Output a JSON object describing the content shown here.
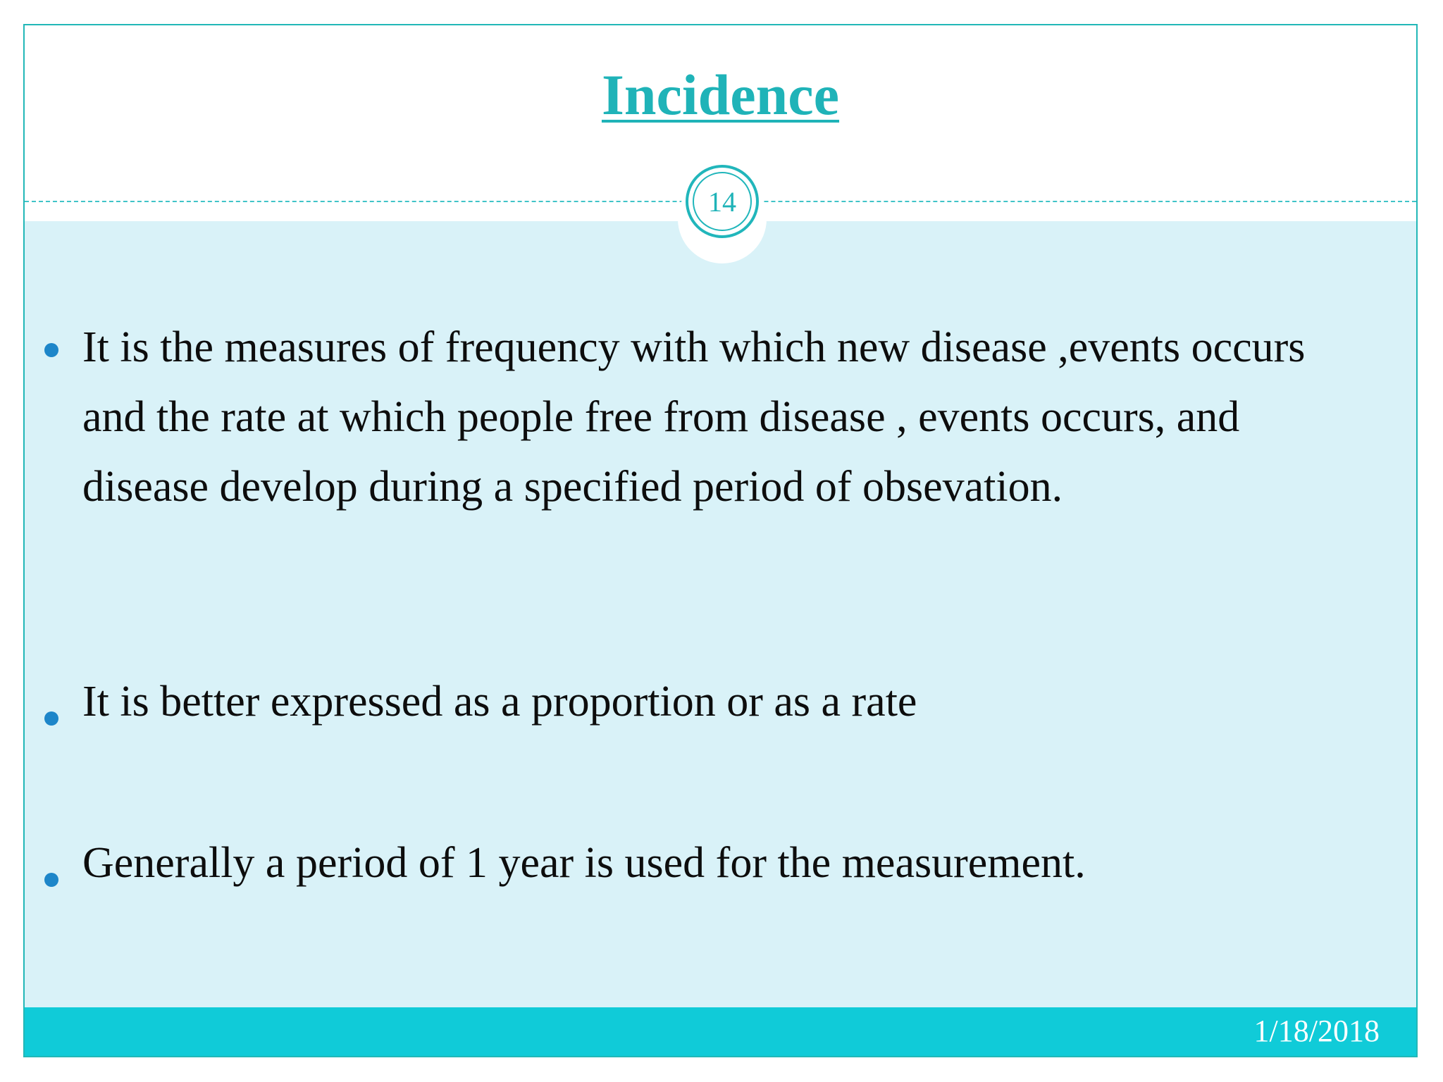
{
  "slide": {
    "title": "Incidence",
    "page_number": "14",
    "bullets": [
      " It is the measures of frequency with which new disease ,events occurs and the rate at which people free from disease , events occurs, and disease develop during a specified period of obsevation.",
      " It is better expressed as a proportion or as a rate",
      "Generally a period of 1 year is used for the measurement."
    ],
    "footer_date": "1/18/2018"
  },
  "colors": {
    "accent": "#1fb3b8",
    "content_background": "#d9f2f8",
    "footer_background": "#10cbd8",
    "bullet": "#1d86c9",
    "text": "#0d0d0d"
  }
}
